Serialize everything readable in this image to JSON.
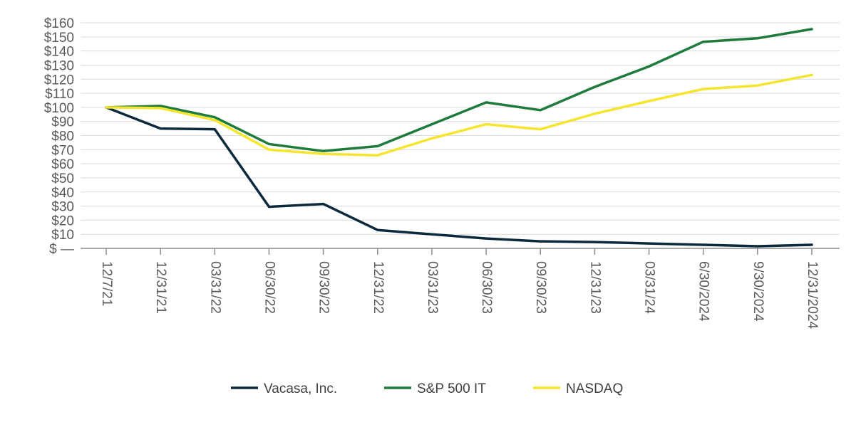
{
  "chart_data": {
    "type": "line",
    "title": "",
    "xlabel": "",
    "ylabel": "",
    "categories": [
      "12/7/21",
      "12/31/21",
      "03/31/22",
      "06/30/22",
      "09/30/22",
      "12/31/22",
      "03/31/23",
      "06/30/23",
      "09/30/23",
      "12/31/23",
      "03/31/24",
      "6/30/2024",
      "9/30/2024",
      "12/31/2024"
    ],
    "ylim": [
      0,
      160
    ],
    "y_ticks": [
      {
        "value": 0,
        "label": "$ —"
      },
      {
        "value": 10,
        "label": "$10"
      },
      {
        "value": 20,
        "label": "$20"
      },
      {
        "value": 30,
        "label": "$30"
      },
      {
        "value": 40,
        "label": "$40"
      },
      {
        "value": 50,
        "label": "$50"
      },
      {
        "value": 60,
        "label": "$60"
      },
      {
        "value": 70,
        "label": "$70"
      },
      {
        "value": 80,
        "label": "$80"
      },
      {
        "value": 90,
        "label": "$90"
      },
      {
        "value": 100,
        "label": "$100"
      },
      {
        "value": 110,
        "label": "$110"
      },
      {
        "value": 120,
        "label": "$120"
      },
      {
        "value": 130,
        "label": "$130"
      },
      {
        "value": 140,
        "label": "$140"
      },
      {
        "value": 150,
        "label": "$150"
      },
      {
        "value": 160,
        "label": "$160"
      }
    ],
    "grid": true,
    "legend_position": "bottom",
    "series": [
      {
        "name": "Vacasa, Inc.",
        "color": "#0d2a3c",
        "values": [
          100,
          85,
          84.5,
          29.5,
          31.5,
          13,
          10,
          7,
          5,
          4.5,
          3.5,
          2.5,
          1.5,
          2.5
        ]
      },
      {
        "name": "S&P 500 IT",
        "color": "#1e7b3c",
        "values": [
          100,
          101,
          93,
          74,
          69,
          72.5,
          88,
          103.5,
          98,
          114.5,
          129,
          146.5,
          149,
          155.5
        ]
      },
      {
        "name": "NASDAQ",
        "color": "#f5e52e",
        "values": [
          100,
          99.5,
          91,
          70,
          67,
          66,
          78,
          88,
          84.5,
          95.5,
          104.5,
          113,
          115.5,
          123
        ]
      }
    ]
  }
}
